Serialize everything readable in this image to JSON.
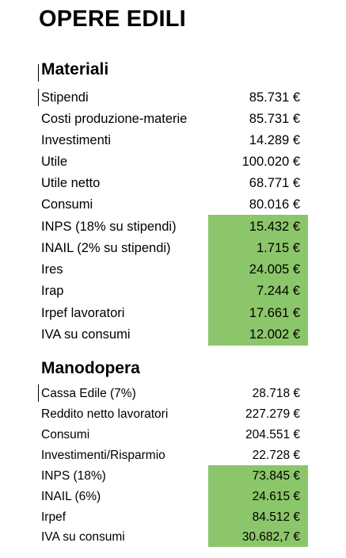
{
  "title": "OPERE EDILI",
  "accent_color": "#8cc66a",
  "materiali": {
    "heading": "Materiali",
    "rows": [
      {
        "label": "Stipendi",
        "value": "85.731 €",
        "highlight": false
      },
      {
        "label": "Costi produzione-materie",
        "value": "85.731 €",
        "highlight": false
      },
      {
        "label": "Investimenti",
        "value": "14.289 €",
        "highlight": false
      },
      {
        "label": "Utile",
        "value": "100.020 €",
        "highlight": false
      },
      {
        "label": "Utile netto",
        "value": "68.771 €",
        "highlight": false
      },
      {
        "label": "Consumi",
        "value": "80.016 €",
        "highlight": false
      },
      {
        "label": "INPS (18% su stipendi)",
        "value": "15.432 €",
        "highlight": true
      },
      {
        "label": "INAIL (2% su stipendi)",
        "value": "1.715 €",
        "highlight": true
      },
      {
        "label": "Ires",
        "value": "24.005 €",
        "highlight": true
      },
      {
        "label": "Irap",
        "value": "7.244 €",
        "highlight": true
      },
      {
        "label": "Irpef lavoratori",
        "value": "17.661 €",
        "highlight": true
      },
      {
        "label": "IVA su consumi",
        "value": "12.002 €",
        "highlight": true
      }
    ]
  },
  "manodopera": {
    "heading": "Manodopera",
    "rows": [
      {
        "label": "Cassa Edile (7%)",
        "value": "28.718 €",
        "highlight": false
      },
      {
        "label": "Reddito netto lavoratori",
        "value": "227.279 €",
        "highlight": false
      },
      {
        "label": "Consumi",
        "value": "204.551 €",
        "highlight": false
      },
      {
        "label": "Investimenti/Risparmio",
        "value": "22.728 €",
        "highlight": false
      },
      {
        "label": "INPS (18%)",
        "value": "73.845 €",
        "highlight": true
      },
      {
        "label": "INAIL (6%)",
        "value": "24.615 €",
        "highlight": true
      },
      {
        "label": "Irpef",
        "value": "84.512 €",
        "highlight": true
      },
      {
        "label": "IVA su consumi",
        "value": "30.682,7 €",
        "highlight": true
      }
    ]
  }
}
